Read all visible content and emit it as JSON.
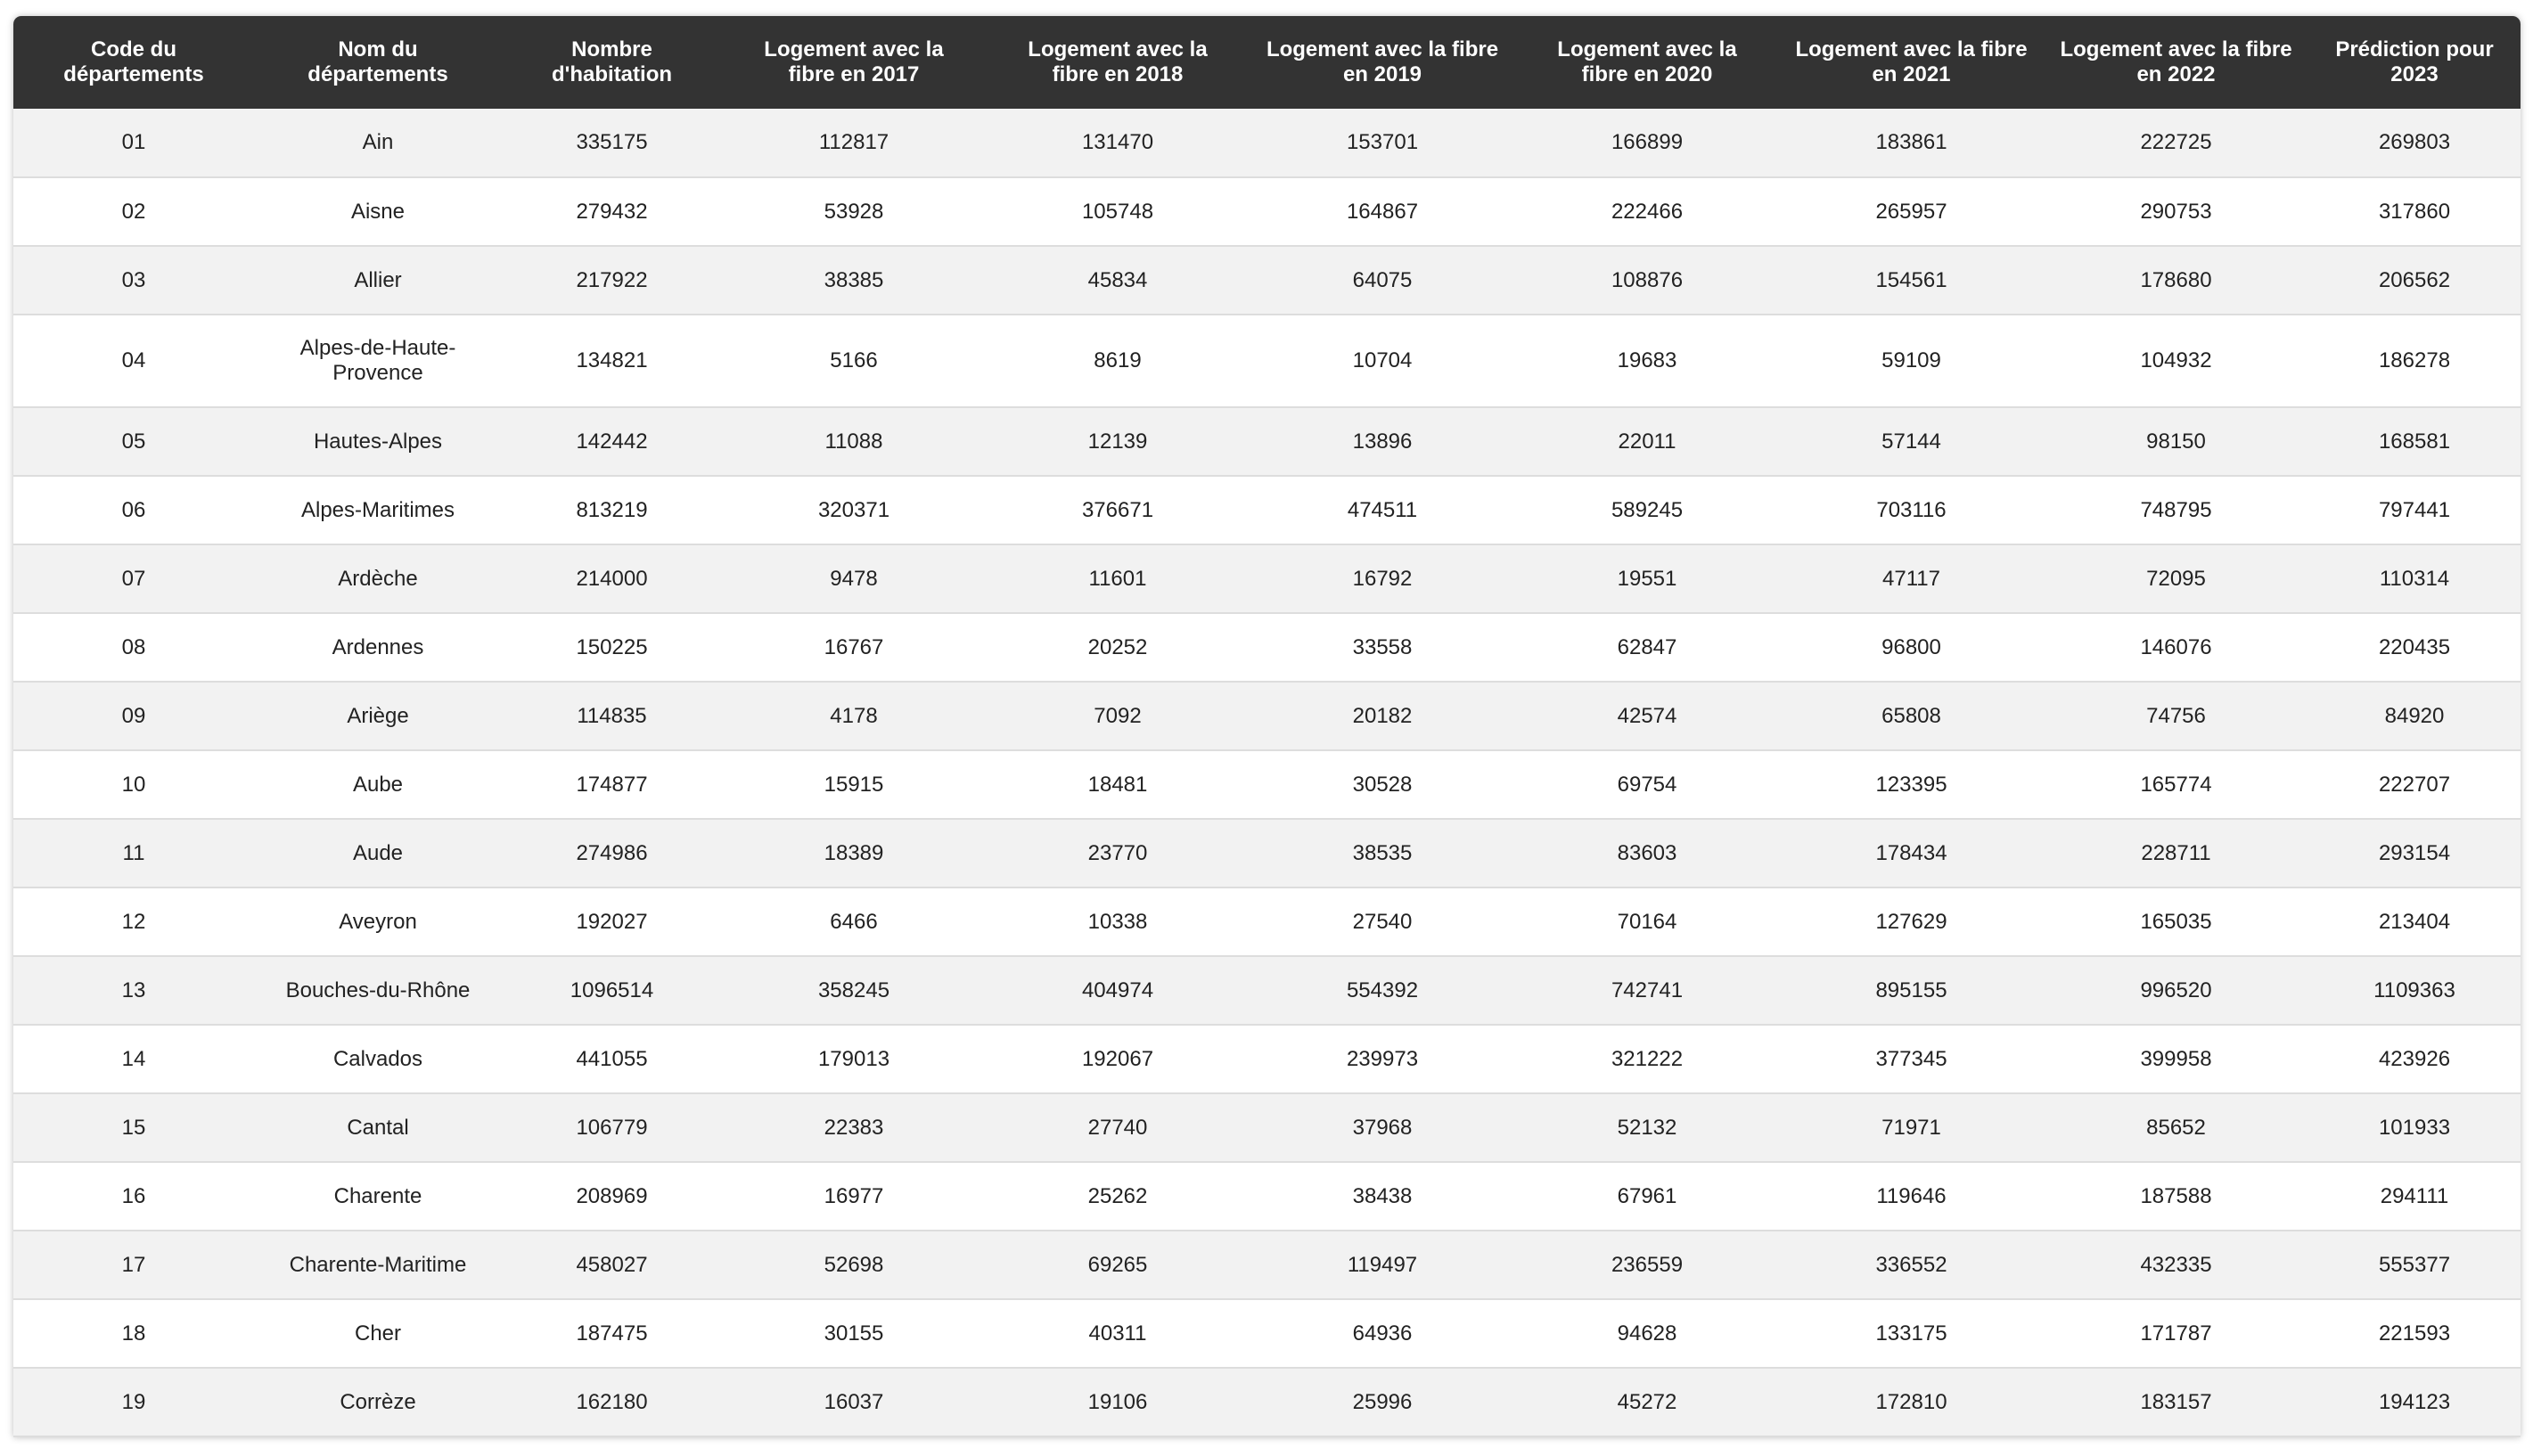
{
  "table": {
    "headers": [
      "Code du départements",
      "Nom du départements",
      "Nombre d'habitation",
      "Logement avec la fibre en 2017",
      "Logement avec la fibre en 2018",
      "Logement avec la fibre en 2019",
      "Logement avec la fibre en 2020",
      "Logement avec la fibre en 2021",
      "Logement avec la fibre en 2022",
      "Prédiction pour 2023"
    ],
    "rows": [
      [
        "01",
        "Ain",
        "335175",
        "112817",
        "131470",
        "153701",
        "166899",
        "183861",
        "222725",
        "269803"
      ],
      [
        "02",
        "Aisne",
        "279432",
        "53928",
        "105748",
        "164867",
        "222466",
        "265957",
        "290753",
        "317860"
      ],
      [
        "03",
        "Allier",
        "217922",
        "38385",
        "45834",
        "64075",
        "108876",
        "154561",
        "178680",
        "206562"
      ],
      [
        "04",
        "Alpes-de-Haute-Provence",
        "134821",
        "5166",
        "8619",
        "10704",
        "19683",
        "59109",
        "104932",
        "186278"
      ],
      [
        "05",
        "Hautes-Alpes",
        "142442",
        "11088",
        "12139",
        "13896",
        "22011",
        "57144",
        "98150",
        "168581"
      ],
      [
        "06",
        "Alpes-Maritimes",
        "813219",
        "320371",
        "376671",
        "474511",
        "589245",
        "703116",
        "748795",
        "797441"
      ],
      [
        "07",
        "Ardèche",
        "214000",
        "9478",
        "11601",
        "16792",
        "19551",
        "47117",
        "72095",
        "110314"
      ],
      [
        "08",
        "Ardennes",
        "150225",
        "16767",
        "20252",
        "33558",
        "62847",
        "96800",
        "146076",
        "220435"
      ],
      [
        "09",
        "Ariège",
        "114835",
        "4178",
        "7092",
        "20182",
        "42574",
        "65808",
        "74756",
        "84920"
      ],
      [
        "10",
        "Aube",
        "174877",
        "15915",
        "18481",
        "30528",
        "69754",
        "123395",
        "165774",
        "222707"
      ],
      [
        "11",
        "Aude",
        "274986",
        "18389",
        "23770",
        "38535",
        "83603",
        "178434",
        "228711",
        "293154"
      ],
      [
        "12",
        "Aveyron",
        "192027",
        "6466",
        "10338",
        "27540",
        "70164",
        "127629",
        "165035",
        "213404"
      ],
      [
        "13",
        "Bouches-du-Rhône",
        "1096514",
        "358245",
        "404974",
        "554392",
        "742741",
        "895155",
        "996520",
        "1109363"
      ],
      [
        "14",
        "Calvados",
        "441055",
        "179013",
        "192067",
        "239973",
        "321222",
        "377345",
        "399958",
        "423926"
      ],
      [
        "15",
        "Cantal",
        "106779",
        "22383",
        "27740",
        "37968",
        "52132",
        "71971",
        "85652",
        "101933"
      ],
      [
        "16",
        "Charente",
        "208969",
        "16977",
        "25262",
        "38438",
        "67961",
        "119646",
        "187588",
        "294111"
      ],
      [
        "17",
        "Charente-Maritime",
        "458027",
        "52698",
        "69265",
        "119497",
        "236559",
        "336552",
        "432335",
        "555377"
      ],
      [
        "18",
        "Cher",
        "187475",
        "30155",
        "40311",
        "64936",
        "94628",
        "133175",
        "171787",
        "221593"
      ],
      [
        "19",
        "Corrèze",
        "162180",
        "16037",
        "19106",
        "25996",
        "45272",
        "172810",
        "183157",
        "194123"
      ]
    ]
  }
}
